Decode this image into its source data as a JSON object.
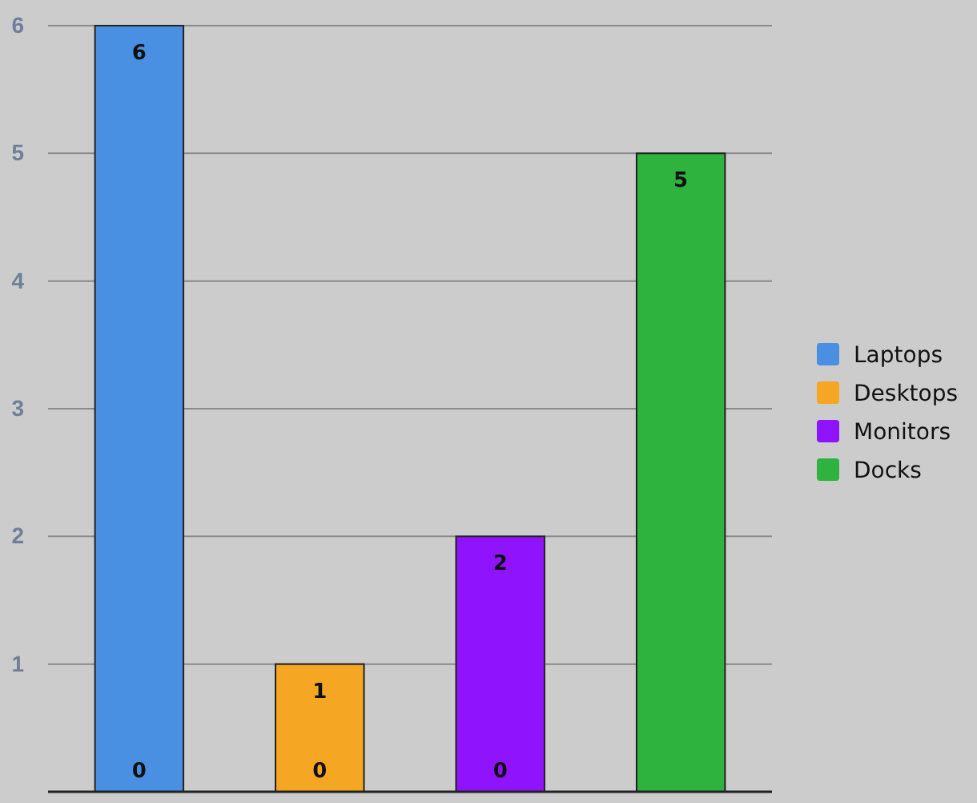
{
  "chart_data": {
    "type": "bar",
    "categories": [
      null,
      null,
      null,
      null
    ],
    "data_labels": true,
    "grid": "y",
    "legend": "right",
    "ylim": [
      0,
      6
    ],
    "yticks": [
      1,
      2,
      3,
      4,
      5,
      6
    ],
    "series": [
      {
        "color": "#cccccc",
        "values": [
          0,
          0,
          0,
          null
        ]
      },
      {
        "name": "Laptops",
        "color": "#4a90e2",
        "values": [
          6,
          null,
          null,
          null
        ]
      },
      {
        "name": "Desktops",
        "color": "#f5a623",
        "values": [
          null,
          1,
          null,
          null
        ]
      },
      {
        "name": "Monitors",
        "color": "#9013fe",
        "values": [
          null,
          null,
          2,
          null
        ]
      },
      {
        "name": "Docks",
        "color": "#2fb33f",
        "values": [
          null,
          null,
          null,
          5
        ]
      }
    ]
  }
}
